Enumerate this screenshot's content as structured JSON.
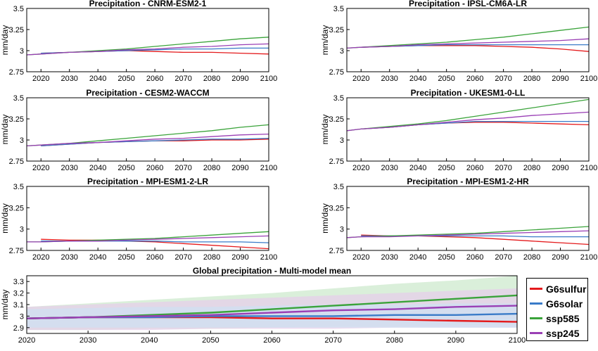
{
  "chart_data": [
    {
      "type": "line",
      "title": "Precipitation - CNRM-ESM2-1",
      "ylabel": "mm/day",
      "xlim": [
        2015,
        2100
      ],
      "ylim": [
        2.75,
        3.5
      ],
      "xticks": [
        "2020",
        "2030",
        "2040",
        "2050",
        "2060",
        "2070",
        "2080",
        "2090",
        "2100"
      ],
      "yticks": [
        "2.75",
        "3",
        "3.25",
        "3.5"
      ],
      "series": [
        {
          "name": "G6sulfur",
          "x": [
            2020,
            2030,
            2040,
            2050,
            2060,
            2070,
            2080,
            2090,
            2100
          ],
          "values": [
            2.97,
            2.98,
            2.99,
            3.0,
            2.99,
            2.98,
            2.98,
            2.97,
            2.96
          ]
        },
        {
          "name": "G6solar",
          "x": [
            2020,
            2030,
            2040,
            2050,
            2060,
            2070,
            2080,
            2090,
            2100
          ],
          "values": [
            2.97,
            2.98,
            2.99,
            3.0,
            3.01,
            3.02,
            3.02,
            3.03,
            3.03
          ]
        },
        {
          "name": "ssp585",
          "x": [
            2015,
            2020,
            2030,
            2040,
            2050,
            2060,
            2070,
            2080,
            2090,
            2100
          ],
          "values": [
            2.95,
            2.96,
            2.98,
            3.0,
            3.02,
            3.05,
            3.08,
            3.11,
            3.14,
            3.16
          ]
        },
        {
          "name": "ssp245",
          "x": [
            2015,
            2020,
            2030,
            2040,
            2050,
            2060,
            2070,
            2080,
            2090,
            2100
          ],
          "values": [
            2.95,
            2.96,
            2.98,
            2.99,
            3.01,
            3.02,
            3.04,
            3.05,
            3.07,
            3.08
          ]
        }
      ]
    },
    {
      "type": "line",
      "title": "Precipitation - IPSL-CM6A-LR",
      "ylabel": "mm/day",
      "xlim": [
        2015,
        2100
      ],
      "ylim": [
        2.75,
        3.5
      ],
      "xticks": [
        "2020",
        "2030",
        "2040",
        "2050",
        "2060",
        "2070",
        "2080",
        "2090",
        "2100"
      ],
      "yticks": [
        "2.75",
        "3",
        "3.25",
        "3.5"
      ],
      "series": [
        {
          "name": "G6sulfur",
          "x": [
            2020,
            2030,
            2040,
            2050,
            2060,
            2070,
            2080,
            2090,
            2100
          ],
          "values": [
            3.04,
            3.05,
            3.06,
            3.06,
            3.06,
            3.05,
            3.04,
            3.02,
            2.99
          ]
        },
        {
          "name": "G6solar",
          "x": [
            2020,
            2030,
            2040,
            2050,
            2060,
            2070,
            2080,
            2090,
            2100
          ],
          "values": [
            3.04,
            3.05,
            3.06,
            3.07,
            3.07,
            3.07,
            3.07,
            3.07,
            3.07
          ]
        },
        {
          "name": "ssp585",
          "x": [
            2015,
            2020,
            2030,
            2040,
            2050,
            2060,
            2070,
            2080,
            2090,
            2100
          ],
          "values": [
            3.03,
            3.04,
            3.06,
            3.08,
            3.1,
            3.13,
            3.16,
            3.2,
            3.24,
            3.28
          ]
        },
        {
          "name": "ssp245",
          "x": [
            2015,
            2020,
            2030,
            2040,
            2050,
            2060,
            2070,
            2080,
            2090,
            2100
          ],
          "values": [
            3.03,
            3.04,
            3.05,
            3.07,
            3.08,
            3.09,
            3.1,
            3.11,
            3.12,
            3.14
          ]
        }
      ]
    },
    {
      "type": "line",
      "title": "Precipitation - CESM2-WACCM",
      "ylabel": "mm/day",
      "xlim": [
        2015,
        2100
      ],
      "ylim": [
        2.75,
        3.5
      ],
      "xticks": [
        "2020",
        "2030",
        "2040",
        "2050",
        "2060",
        "2070",
        "2080",
        "2090",
        "2100"
      ],
      "yticks": [
        "2.75",
        "3",
        "3.25",
        "3.5"
      ],
      "series": [
        {
          "name": "G6sulfur",
          "x": [
            2020,
            2030,
            2040,
            2050,
            2060,
            2070,
            2080,
            2090,
            2100
          ],
          "values": [
            2.93,
            2.95,
            2.97,
            2.98,
            2.99,
            2.99,
            3.0,
            3.0,
            3.01
          ]
        },
        {
          "name": "G6solar",
          "x": [
            2020,
            2030,
            2040,
            2050,
            2060,
            2070,
            2080,
            2090,
            2100
          ],
          "values": [
            2.93,
            2.95,
            2.97,
            2.98,
            2.99,
            3.0,
            3.01,
            3.01,
            3.02
          ]
        },
        {
          "name": "ssp585",
          "x": [
            2015,
            2020,
            2030,
            2040,
            2050,
            2060,
            2070,
            2080,
            2090,
            2100
          ],
          "values": [
            2.93,
            2.94,
            2.96,
            2.99,
            3.02,
            3.05,
            3.08,
            3.11,
            3.15,
            3.18
          ]
        },
        {
          "name": "ssp245",
          "x": [
            2015,
            2020,
            2030,
            2040,
            2050,
            2060,
            2070,
            2080,
            2090,
            2100
          ],
          "values": [
            2.93,
            2.94,
            2.96,
            2.97,
            2.99,
            3.01,
            3.02,
            3.04,
            3.06,
            3.07
          ]
        }
      ]
    },
    {
      "type": "line",
      "title": "Precipitation - UKESM1-0-LL",
      "ylabel": "mm/day",
      "xlim": [
        2015,
        2100
      ],
      "ylim": [
        2.75,
        3.5
      ],
      "xticks": [
        "2020",
        "2030",
        "2040",
        "2050",
        "2060",
        "2070",
        "2080",
        "2090",
        "2100"
      ],
      "yticks": [
        "2.75",
        "3",
        "3.25",
        "3.5"
      ],
      "series": [
        {
          "name": "G6sulfur",
          "x": [
            2020,
            2030,
            2040,
            2050,
            2060,
            2070,
            2080,
            2090,
            2100
          ],
          "values": [
            3.13,
            3.15,
            3.18,
            3.2,
            3.21,
            3.21,
            3.2,
            3.19,
            3.18
          ]
        },
        {
          "name": "G6solar",
          "x": [
            2020,
            2030,
            2040,
            2050,
            2060,
            2070,
            2080,
            2090,
            2100
          ],
          "values": [
            3.13,
            3.15,
            3.18,
            3.2,
            3.22,
            3.22,
            3.22,
            3.22,
            3.22
          ]
        },
        {
          "name": "ssp585",
          "x": [
            2015,
            2020,
            2030,
            2040,
            2050,
            2060,
            2070,
            2080,
            2090,
            2100
          ],
          "values": [
            3.11,
            3.13,
            3.16,
            3.19,
            3.23,
            3.28,
            3.33,
            3.38,
            3.43,
            3.48
          ]
        },
        {
          "name": "ssp245",
          "x": [
            2015,
            2020,
            2030,
            2040,
            2050,
            2060,
            2070,
            2080,
            2090,
            2100
          ],
          "values": [
            3.11,
            3.13,
            3.15,
            3.18,
            3.21,
            3.24,
            3.26,
            3.29,
            3.31,
            3.33
          ]
        }
      ]
    },
    {
      "type": "line",
      "title": "Precipitation - MPI-ESM1-2-LR",
      "ylabel": "mm/day",
      "xlim": [
        2015,
        2100
      ],
      "ylim": [
        2.75,
        3.5
      ],
      "xticks": [
        "2020",
        "2030",
        "2040",
        "2050",
        "2060",
        "2070",
        "2080",
        "2090",
        "2100"
      ],
      "yticks": [
        "2.75",
        "3",
        "3.25",
        "3.5"
      ],
      "series": [
        {
          "name": "G6sulfur",
          "x": [
            2020,
            2030,
            2040,
            2050,
            2060,
            2070,
            2080,
            2090,
            2100
          ],
          "values": [
            2.88,
            2.87,
            2.87,
            2.86,
            2.85,
            2.83,
            2.81,
            2.79,
            2.77
          ]
        },
        {
          "name": "G6solar",
          "x": [
            2020,
            2030,
            2040,
            2050,
            2060,
            2070,
            2080,
            2090,
            2100
          ],
          "values": [
            2.86,
            2.86,
            2.86,
            2.86,
            2.86,
            2.85,
            2.85,
            2.85,
            2.84
          ]
        },
        {
          "name": "ssp585",
          "x": [
            2015,
            2020,
            2030,
            2040,
            2050,
            2060,
            2070,
            2080,
            2090,
            2100
          ],
          "values": [
            2.85,
            2.85,
            2.86,
            2.87,
            2.88,
            2.89,
            2.91,
            2.93,
            2.95,
            2.97
          ]
        },
        {
          "name": "ssp245",
          "x": [
            2015,
            2020,
            2030,
            2040,
            2050,
            2060,
            2070,
            2080,
            2090,
            2100
          ],
          "values": [
            2.85,
            2.85,
            2.86,
            2.86,
            2.87,
            2.88,
            2.89,
            2.9,
            2.91,
            2.92
          ]
        }
      ]
    },
    {
      "type": "line",
      "title": "Precipitation - MPI-ESM1-2-HR",
      "ylabel": "mm/day",
      "xlim": [
        2015,
        2100
      ],
      "ylim": [
        2.75,
        3.5
      ],
      "xticks": [
        "2020",
        "2030",
        "2040",
        "2050",
        "2060",
        "2070",
        "2080",
        "2090",
        "2100"
      ],
      "yticks": [
        "2.75",
        "3",
        "3.25",
        "3.5"
      ],
      "series": [
        {
          "name": "G6sulfur",
          "x": [
            2020,
            2030,
            2040,
            2050,
            2060,
            2070,
            2080,
            2090,
            2100
          ],
          "values": [
            2.93,
            2.92,
            2.92,
            2.91,
            2.9,
            2.88,
            2.86,
            2.84,
            2.82
          ]
        },
        {
          "name": "G6solar",
          "x": [
            2020,
            2030,
            2040,
            2050,
            2060,
            2070,
            2080,
            2090,
            2100
          ],
          "values": [
            2.92,
            2.92,
            2.92,
            2.92,
            2.92,
            2.92,
            2.91,
            2.91,
            2.91
          ]
        },
        {
          "name": "ssp585",
          "x": [
            2015,
            2020,
            2030,
            2040,
            2050,
            2060,
            2070,
            2080,
            2090,
            2100
          ],
          "values": [
            2.9,
            2.91,
            2.92,
            2.93,
            2.94,
            2.95,
            2.97,
            2.99,
            3.01,
            3.03
          ]
        },
        {
          "name": "ssp245",
          "x": [
            2015,
            2020,
            2030,
            2040,
            2050,
            2060,
            2070,
            2080,
            2090,
            2100
          ],
          "values": [
            2.9,
            2.91,
            2.91,
            2.92,
            2.93,
            2.94,
            2.95,
            2.96,
            2.97,
            2.98
          ]
        }
      ]
    },
    {
      "type": "area",
      "title": "Global precipitation - Multi-model mean",
      "ylabel": "mm/day",
      "xlim": [
        2020,
        2100
      ],
      "ylim": [
        2.85,
        3.35
      ],
      "xticks": [
        "2020",
        "2030",
        "2040",
        "2050",
        "2060",
        "2070",
        "2080",
        "2090",
        "2100"
      ],
      "yticks": [
        "2.9",
        "3",
        "3.1",
        "3.2",
        "3.3"
      ],
      "bands": [
        {
          "name": "ssp585",
          "x": [
            2020,
            2030,
            2040,
            2050,
            2060,
            2070,
            2080,
            2090,
            2100
          ],
          "low": [
            2.88,
            2.88,
            2.89,
            2.89,
            2.9,
            2.91,
            2.91,
            2.92,
            2.93
          ],
          "high": [
            3.08,
            3.11,
            3.14,
            3.17,
            3.2,
            3.24,
            3.28,
            3.31,
            3.35
          ]
        },
        {
          "name": "ssp245",
          "x": [
            2020,
            2030,
            2040,
            2050,
            2060,
            2070,
            2080,
            2090,
            2100
          ],
          "low": [
            2.88,
            2.88,
            2.88,
            2.89,
            2.89,
            2.89,
            2.9,
            2.9,
            2.9
          ],
          "high": [
            3.08,
            3.1,
            3.12,
            3.14,
            3.16,
            3.18,
            3.2,
            3.22,
            3.24
          ]
        },
        {
          "name": "G6solar",
          "x": [
            2020,
            2030,
            2040,
            2050,
            2060,
            2070,
            2080,
            2090,
            2100
          ],
          "low": [
            2.9,
            2.9,
            2.9,
            2.9,
            2.9,
            2.9,
            2.9,
            2.9,
            2.9
          ],
          "high": [
            3.06,
            3.07,
            3.08,
            3.08,
            3.09,
            3.1,
            3.1,
            3.11,
            3.11
          ]
        }
      ],
      "series": [
        {
          "name": "G6sulfur",
          "x": [
            2020,
            2030,
            2040,
            2050,
            2060,
            2070,
            2080,
            2090,
            2100
          ],
          "values": [
            2.98,
            2.99,
            2.99,
            2.99,
            2.98,
            2.98,
            2.97,
            2.96,
            2.95
          ]
        },
        {
          "name": "G6solar",
          "x": [
            2020,
            2030,
            2040,
            2050,
            2060,
            2070,
            2080,
            2090,
            2100
          ],
          "values": [
            2.98,
            2.99,
            2.99,
            3.0,
            3.0,
            3.0,
            3.01,
            3.01,
            3.02
          ]
        },
        {
          "name": "ssp585",
          "x": [
            2020,
            2030,
            2040,
            2050,
            2060,
            2070,
            2080,
            2090,
            2100
          ],
          "values": [
            2.98,
            2.99,
            3.01,
            3.03,
            3.06,
            3.09,
            3.12,
            3.15,
            3.18
          ]
        },
        {
          "name": "ssp245",
          "x": [
            2020,
            2030,
            2040,
            2050,
            2060,
            2070,
            2080,
            2090,
            2100
          ],
          "values": [
            2.98,
            2.99,
            3.0,
            3.01,
            3.03,
            3.05,
            3.06,
            3.08,
            3.09
          ]
        }
      ]
    }
  ],
  "colors": {
    "G6sulfur": "#e41a1c",
    "G6solar": "#3a7bc8",
    "ssp585": "#3aa33a",
    "ssp245": "#9a3fb5",
    "band_ssp585": "#cde9cd",
    "band_ssp245": "#e6cfe9",
    "band_G6solar": "#cfe0f2"
  },
  "legend": {
    "items": [
      {
        "label": "G6sulfur",
        "color": "#e41a1c"
      },
      {
        "label": "G6solar",
        "color": "#3a7bc8"
      },
      {
        "label": "ssp585",
        "color": "#3aa33a"
      },
      {
        "label": "ssp245",
        "color": "#9a3fb5"
      }
    ]
  }
}
